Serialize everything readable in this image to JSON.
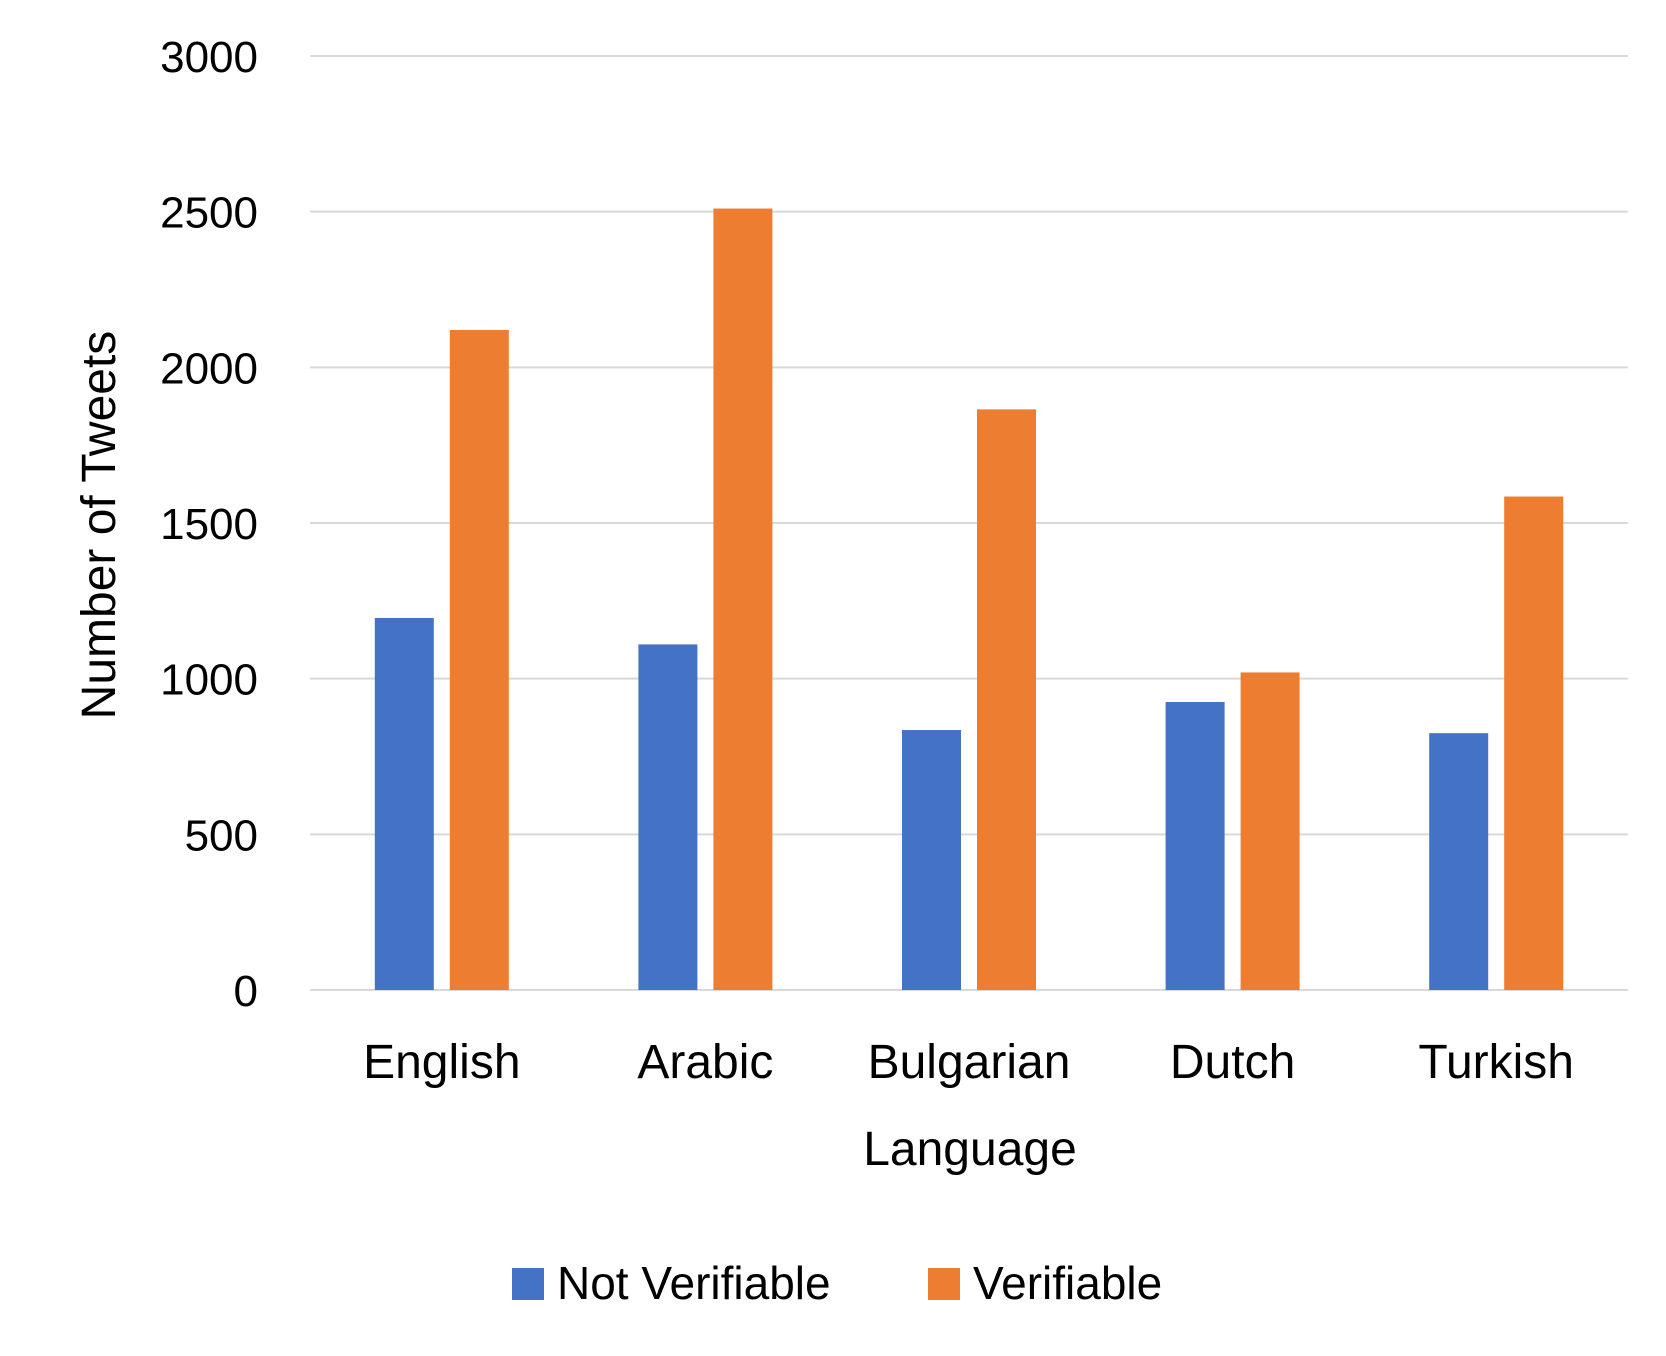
{
  "chart_data": {
    "type": "bar",
    "title": "",
    "xlabel": "Language",
    "ylabel": "Number of Tweets",
    "categories": [
      "English",
      "Arabic",
      "Bulgarian",
      "Dutch",
      "Turkish"
    ],
    "series": [
      {
        "name": "Not Verifiable",
        "color": "#4472C4",
        "values": [
          1195,
          1110,
          835,
          925,
          825
        ]
      },
      {
        "name": "Verifiable",
        "color": "#ED7D31",
        "values": [
          2120,
          2510,
          1865,
          1020,
          1585
        ]
      }
    ],
    "ylim": [
      0,
      3000
    ],
    "yticks": [
      0,
      500,
      1000,
      1500,
      2000,
      2500,
      3000
    ],
    "grid": true,
    "legend": "bottom",
    "colors": {
      "gridline": "#D9D9D9",
      "text": "#000000"
    }
  }
}
